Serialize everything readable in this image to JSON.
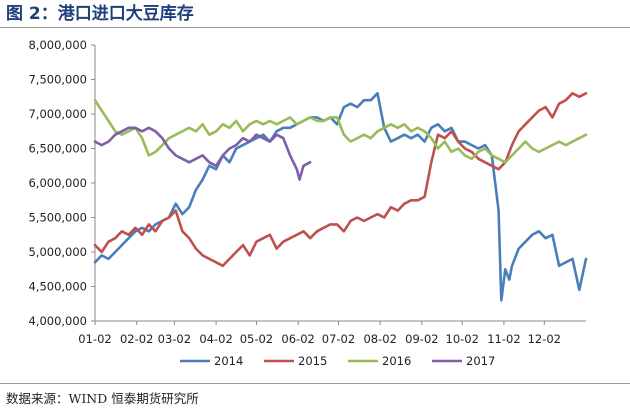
{
  "header": {
    "title": "图 2：港口进口大豆库存"
  },
  "footer": {
    "source": "数据来源：WIND 恒泰期货研究所"
  },
  "chart_data": {
    "type": "line",
    "title": "图 2：港口进口大豆库存",
    "xlabel": "",
    "ylabel": "",
    "ylim": [
      4000000,
      8000000
    ],
    "yticks": [
      4000000,
      4500000,
      5000000,
      5500000,
      6000000,
      6500000,
      7000000,
      7500000,
      8000000
    ],
    "ytick_labels": [
      "4,000,000",
      "4,500,000",
      "5,000,000",
      "5,500,000",
      "6,000,000",
      "6,500,000",
      "7,000,000",
      "7,500,000",
      "8,000,000"
    ],
    "x_unit": "day of year (MM-DD)",
    "xlim": [
      1,
      366
    ],
    "xticks": [
      1,
      32,
      60,
      91,
      121,
      152,
      182,
      213,
      244,
      274,
      305,
      335
    ],
    "xtick_labels": [
      "01-02",
      "02-02",
      "03-02",
      "04-02",
      "05-02",
      "06-02",
      "07-02",
      "08-02",
      "09-02",
      "10-02",
      "11-02",
      "12-02"
    ],
    "grid": false,
    "legend_position": "bottom",
    "colors": {
      "2014": "#4a7ebb",
      "2015": "#c0504d",
      "2016": "#9bbb59",
      "2017": "#7f5ea8"
    },
    "series": [
      {
        "name": "2014",
        "x": [
          1,
          6,
          11,
          16,
          21,
          26,
          31,
          36,
          41,
          46,
          51,
          56,
          61,
          66,
          71,
          76,
          81,
          86,
          91,
          96,
          101,
          106,
          111,
          116,
          121,
          126,
          131,
          136,
          141,
          146,
          151,
          156,
          161,
          166,
          171,
          176,
          181,
          186,
          191,
          196,
          201,
          206,
          211,
          216,
          221,
          226,
          231,
          236,
          241,
          246,
          251,
          256,
          261,
          266,
          271,
          276,
          281,
          286,
          291,
          296,
          301,
          303,
          306,
          309,
          311,
          316,
          321,
          326,
          331,
          336,
          341,
          346,
          351,
          356,
          361,
          366
        ],
        "values": [
          4850000,
          4950000,
          4900000,
          5000000,
          5100000,
          5200000,
          5300000,
          5350000,
          5300000,
          5400000,
          5450000,
          5500000,
          5700000,
          5550000,
          5650000,
          5900000,
          6050000,
          6250000,
          6200000,
          6400000,
          6300000,
          6500000,
          6550000,
          6600000,
          6650000,
          6700000,
          6600000,
          6750000,
          6800000,
          6800000,
          6850000,
          6900000,
          6950000,
          6950000,
          6900000,
          6950000,
          6850000,
          7100000,
          7150000,
          7100000,
          7200000,
          7200000,
          7300000,
          6800000,
          6600000,
          6650000,
          6700000,
          6650000,
          6700000,
          6600000,
          6800000,
          6850000,
          6750000,
          6800000,
          6600000,
          6600000,
          6550000,
          6500000,
          6550000,
          6400000,
          5600000,
          4300000,
          4750000,
          4600000,
          4800000,
          5050000,
          5150000,
          5250000,
          5300000,
          5200000,
          5250000,
          4800000,
          4850000,
          4900000,
          4450000,
          4900000
        ]
      },
      {
        "name": "2015",
        "x": [
          1,
          6,
          11,
          16,
          21,
          26,
          31,
          36,
          41,
          46,
          51,
          56,
          61,
          66,
          71,
          76,
          81,
          86,
          91,
          96,
          101,
          106,
          111,
          116,
          121,
          126,
          131,
          136,
          141,
          146,
          151,
          156,
          161,
          166,
          171,
          176,
          181,
          186,
          191,
          196,
          201,
          206,
          211,
          216,
          221,
          226,
          231,
          236,
          241,
          246,
          251,
          256,
          261,
          266,
          271,
          276,
          281,
          286,
          291,
          296,
          301,
          306,
          311,
          316,
          321,
          326,
          331,
          336,
          341,
          346,
          351,
          356,
          361,
          366
        ],
        "values": [
          5100000,
          5000000,
          5150000,
          5200000,
          5300000,
          5250000,
          5350000,
          5250000,
          5400000,
          5300000,
          5450000,
          5500000,
          5600000,
          5300000,
          5200000,
          5050000,
          4950000,
          4900000,
          4850000,
          4800000,
          4900000,
          5000000,
          5100000,
          4950000,
          5150000,
          5200000,
          5250000,
          5050000,
          5150000,
          5200000,
          5250000,
          5300000,
          5200000,
          5300000,
          5350000,
          5400000,
          5400000,
          5300000,
          5450000,
          5500000,
          5450000,
          5500000,
          5550000,
          5500000,
          5650000,
          5600000,
          5700000,
          5750000,
          5750000,
          5800000,
          6300000,
          6700000,
          6650000,
          6750000,
          6600000,
          6500000,
          6450000,
          6350000,
          6300000,
          6250000,
          6200000,
          6300000,
          6550000,
          6750000,
          6850000,
          6950000,
          7050000,
          7100000,
          6950000,
          7150000,
          7200000,
          7300000,
          7250000,
          7300000
        ]
      },
      {
        "name": "2016",
        "x": [
          1,
          6,
          11,
          16,
          21,
          26,
          31,
          36,
          41,
          46,
          51,
          56,
          61,
          66,
          71,
          76,
          81,
          86,
          91,
          96,
          101,
          106,
          111,
          116,
          121,
          126,
          131,
          136,
          141,
          146,
          151,
          156,
          161,
          166,
          171,
          176,
          181,
          186,
          191,
          196,
          201,
          206,
          211,
          216,
          221,
          226,
          231,
          236,
          241,
          246,
          251,
          256,
          261,
          266,
          271,
          276,
          281,
          286,
          291,
          296,
          301,
          306,
          311,
          316,
          321,
          326,
          331,
          336,
          341,
          346,
          351,
          356,
          361,
          366
        ],
        "values": [
          7200000,
          7050000,
          6900000,
          6750000,
          6700000,
          6750000,
          6800000,
          6650000,
          6400000,
          6450000,
          6550000,
          6650000,
          6700000,
          6750000,
          6800000,
          6750000,
          6850000,
          6700000,
          6750000,
          6850000,
          6800000,
          6900000,
          6750000,
          6850000,
          6900000,
          6850000,
          6900000,
          6850000,
          6900000,
          6950000,
          6850000,
          6900000,
          6950000,
          6900000,
          6900000,
          6950000,
          6950000,
          6700000,
          6600000,
          6650000,
          6700000,
          6650000,
          6750000,
          6800000,
          6850000,
          6800000,
          6850000,
          6750000,
          6800000,
          6750000,
          6650000,
          6500000,
          6600000,
          6450000,
          6500000,
          6400000,
          6350000,
          6450000,
          6500000,
          6400000,
          6350000,
          6300000,
          6400000,
          6500000,
          6600000,
          6500000,
          6450000,
          6500000,
          6550000,
          6600000,
          6550000,
          6600000,
          6650000,
          6700000
        ]
      },
      {
        "name": "2017",
        "x": [
          1,
          6,
          11,
          16,
          21,
          26,
          31,
          36,
          41,
          46,
          51,
          56,
          61,
          66,
          71,
          76,
          81,
          86,
          91,
          96,
          101,
          106,
          111,
          116,
          121,
          126,
          131,
          136,
          141,
          146,
          151,
          153,
          156,
          161
        ],
        "values": [
          6600000,
          6550000,
          6600000,
          6700000,
          6750000,
          6800000,
          6800000,
          6750000,
          6800000,
          6750000,
          6650000,
          6500000,
          6400000,
          6350000,
          6300000,
          6350000,
          6400000,
          6300000,
          6250000,
          6400000,
          6500000,
          6550000,
          6650000,
          6600000,
          6700000,
          6650000,
          6600000,
          6700000,
          6650000,
          6400000,
          6200000,
          6050000,
          6250000,
          6300000
        ]
      }
    ]
  }
}
